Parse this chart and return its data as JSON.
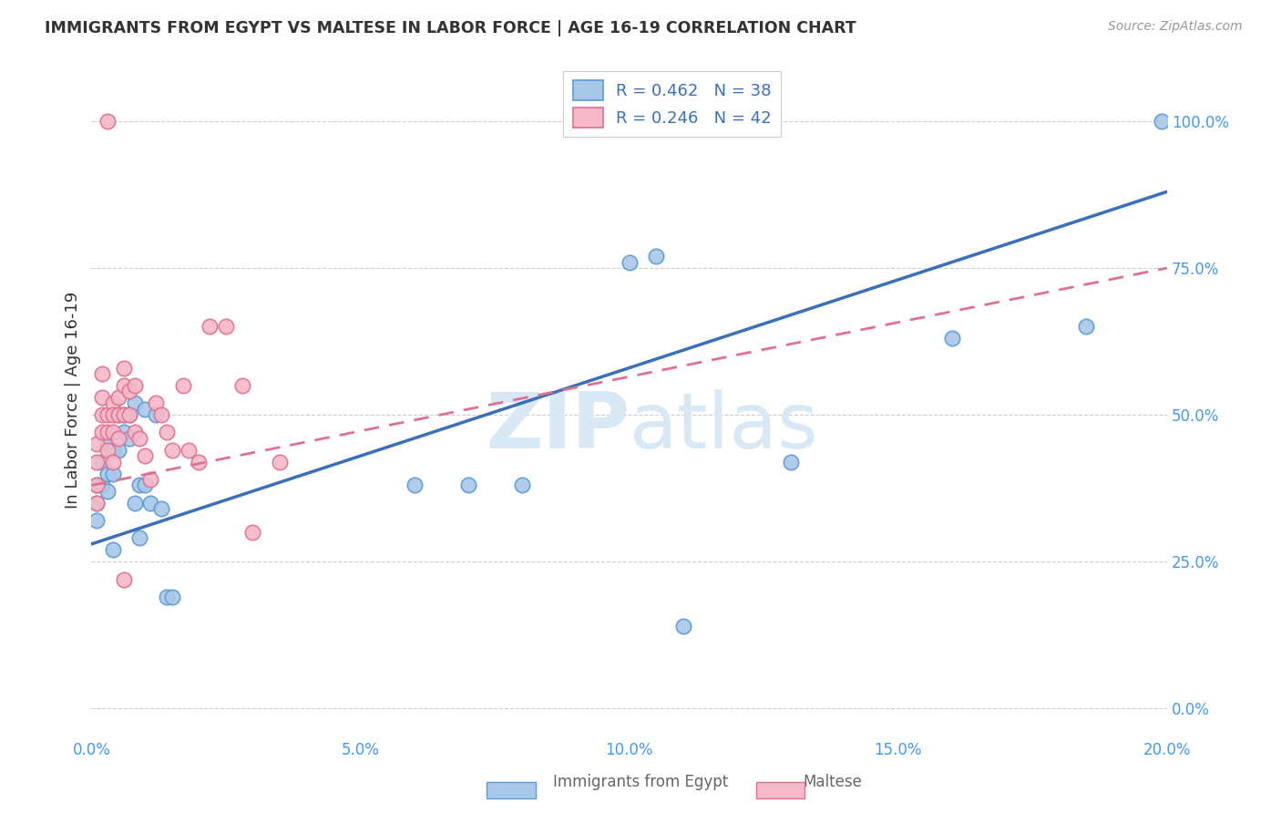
{
  "title": "IMMIGRANTS FROM EGYPT VS MALTESE IN LABOR FORCE | AGE 16-19 CORRELATION CHART",
  "source": "Source: ZipAtlas.com",
  "ylabel": "In Labor Force | Age 16-19",
  "xlim": [
    0.0,
    0.2
  ],
  "ylim": [
    -0.05,
    1.1
  ],
  "xticks": [
    0.0,
    0.05,
    0.1,
    0.15,
    0.2
  ],
  "xtick_labels": [
    "0.0%",
    "5.0%",
    "10.0%",
    "15.0%",
    "20.0%"
  ],
  "yticks": [
    0.0,
    0.25,
    0.5,
    0.75,
    1.0
  ],
  "ytick_labels": [
    "0.0%",
    "25.0%",
    "50.0%",
    "75.0%",
    "100.0%"
  ],
  "blue_face": "#a8c8e8",
  "blue_edge": "#5b9bd5",
  "pink_face": "#f4b8c8",
  "pink_edge": "#e07090",
  "line_blue_color": "#3a6fba",
  "line_pink_color": "#e07090",
  "watermark_color": "#d8e8f5",
  "legend_box_color": "#f0f4fa",
  "legend_border_color": "#cccccc",
  "text_blue": "#3a6fba",
  "axis_tick_color": "#4499ee",
  "blue_x": [
    0.001,
    0.001,
    0.001,
    0.002,
    0.002,
    0.003,
    0.003,
    0.003,
    0.004,
    0.004,
    0.004,
    0.005,
    0.005,
    0.006,
    0.006,
    0.007,
    0.007,
    0.008,
    0.008,
    0.009,
    0.009,
    0.01,
    0.01,
    0.011,
    0.012,
    0.013,
    0.014,
    0.015,
    0.06,
    0.07,
    0.08,
    0.1,
    0.105,
    0.11,
    0.13,
    0.16,
    0.185,
    0.199
  ],
  "blue_y": [
    0.38,
    0.35,
    0.32,
    0.42,
    0.38,
    0.45,
    0.4,
    0.37,
    0.44,
    0.4,
    0.27,
    0.5,
    0.44,
    0.5,
    0.47,
    0.5,
    0.46,
    0.52,
    0.35,
    0.38,
    0.29,
    0.51,
    0.38,
    0.35,
    0.5,
    0.34,
    0.19,
    0.19,
    0.38,
    0.38,
    0.38,
    0.76,
    0.77,
    0.14,
    0.42,
    0.63,
    0.65,
    1.0
  ],
  "pink_x": [
    0.001,
    0.001,
    0.001,
    0.001,
    0.002,
    0.002,
    0.002,
    0.002,
    0.003,
    0.003,
    0.003,
    0.004,
    0.004,
    0.004,
    0.004,
    0.005,
    0.005,
    0.005,
    0.006,
    0.006,
    0.006,
    0.007,
    0.007,
    0.008,
    0.008,
    0.009,
    0.01,
    0.011,
    0.012,
    0.013,
    0.014,
    0.015,
    0.017,
    0.018,
    0.02,
    0.022,
    0.025,
    0.028,
    0.03,
    0.035,
    0.003,
    0.006
  ],
  "pink_y": [
    0.45,
    0.42,
    0.38,
    0.35,
    0.57,
    0.53,
    0.5,
    0.47,
    0.5,
    0.47,
    0.44,
    0.52,
    0.5,
    0.47,
    0.42,
    0.53,
    0.5,
    0.46,
    0.58,
    0.55,
    0.5,
    0.54,
    0.5,
    0.47,
    0.55,
    0.46,
    0.43,
    0.39,
    0.52,
    0.5,
    0.47,
    0.44,
    0.55,
    0.44,
    0.42,
    0.65,
    0.65,
    0.55,
    0.3,
    0.42,
    1.0,
    0.22
  ],
  "blue_line_x0": 0.0,
  "blue_line_x1": 0.2,
  "blue_line_y0": 0.28,
  "blue_line_y1": 0.88,
  "pink_line_x0": 0.0,
  "pink_line_x1": 0.2,
  "pink_line_y0": 0.38,
  "pink_line_y1": 0.75
}
